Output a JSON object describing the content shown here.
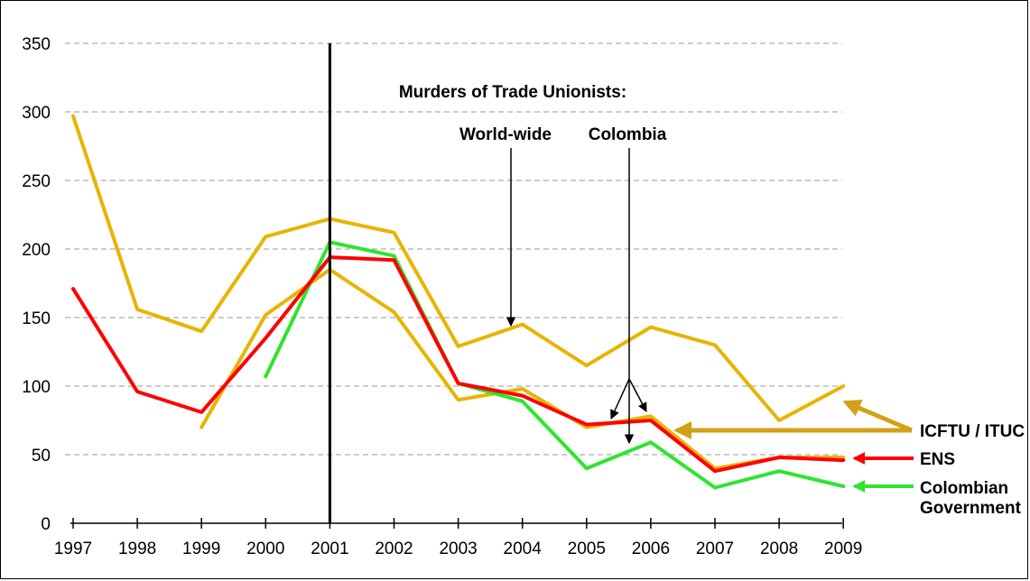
{
  "chart_data": {
    "type": "line",
    "x": [
      1997,
      1998,
      1999,
      2000,
      2001,
      2002,
      2003,
      2004,
      2005,
      2006,
      2007,
      2008,
      2009
    ],
    "ylim": [
      0,
      350
    ],
    "yticks": [
      0,
      50,
      100,
      150,
      200,
      250,
      300,
      350
    ],
    "grid": true,
    "marker_year": 2001,
    "series": [
      {
        "id": "world",
        "color": "#e8b400",
        "values": [
          297,
          156,
          140,
          209,
          222,
          212,
          129,
          145,
          115,
          143,
          130,
          75,
          100
        ]
      },
      {
        "id": "col_ituc",
        "color": "#e8b400",
        "values": [
          null,
          null,
          70,
          152,
          185,
          154,
          90,
          98,
          70,
          78,
          40,
          48,
          48
        ]
      },
      {
        "id": "ens",
        "name": "ENS",
        "color": "#ff0000",
        "values": [
          171,
          96,
          81,
          135,
          194,
          192,
          102,
          93,
          72,
          75,
          38,
          48,
          46
        ]
      },
      {
        "id": "gov",
        "name": "Colombian Government",
        "color": "#2ee52e",
        "values": [
          null,
          null,
          null,
          107,
          205,
          195,
          102,
          89,
          40,
          59,
          26,
          38,
          27
        ]
      }
    ],
    "annotations": {
      "title": "Murders of Trade Unionists:",
      "world_label": "World-wide",
      "colombia_label": "Colombia"
    },
    "legend": {
      "ituc": "ICFTU / ITUC",
      "ens": "ENS",
      "gov_line1": "Colombian",
      "gov_line2": "Government",
      "ituc_color": "#d4a017",
      "ens_color": "#ff0000",
      "gov_color": "#2ee52e"
    }
  }
}
